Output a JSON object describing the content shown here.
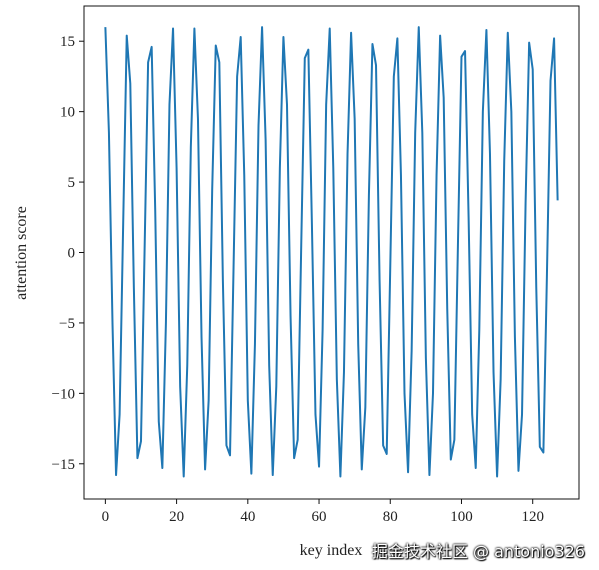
{
  "chart_data": {
    "type": "line",
    "title": "",
    "xlabel": "key index",
    "ylabel": "attention score",
    "xlim": [
      -6,
      133
    ],
    "ylim": [
      -17.5,
      17.5
    ],
    "xticks": [
      0,
      20,
      40,
      60,
      80,
      100,
      120
    ],
    "yticks": [
      -15,
      -10,
      -5,
      0,
      5,
      10,
      15
    ],
    "grid": false,
    "legend": "none",
    "series": [
      {
        "color": "#1f77b4",
        "x": [
          0,
          1,
          2,
          3,
          4,
          5,
          6,
          7,
          8,
          9,
          10,
          11,
          12,
          13,
          14,
          15,
          16,
          17,
          18,
          19,
          20,
          21,
          22,
          23,
          24,
          25,
          26,
          27,
          28,
          29,
          30,
          31,
          32,
          33,
          34,
          35,
          36,
          37,
          38,
          39,
          40,
          41,
          42,
          43,
          44,
          45,
          46,
          47,
          48,
          49,
          50,
          51,
          52,
          53,
          54,
          55,
          56,
          57,
          58,
          59,
          60,
          61,
          62,
          63,
          64,
          65,
          66,
          67,
          68,
          69,
          70,
          71,
          72,
          73,
          74,
          75,
          76,
          77,
          78,
          79,
          80,
          81,
          82,
          83,
          84,
          85,
          86,
          87,
          88,
          89,
          90,
          91,
          92,
          93,
          94,
          95,
          96,
          97,
          98,
          99,
          100,
          101,
          102,
          103,
          104,
          105,
          106,
          107,
          108,
          109,
          110,
          111,
          112,
          113,
          114,
          115,
          116,
          117,
          118,
          119,
          120,
          121,
          122,
          123,
          124,
          125,
          126,
          127
        ],
        "y": [
          16.0,
          8.5,
          -5.0,
          -15.8,
          -11.5,
          2.0,
          15.4,
          12.0,
          -2.5,
          -14.6,
          -13.4,
          0.0,
          13.5,
          14.6,
          3.0,
          -12.0,
          -15.3,
          -5.0,
          10.5,
          15.9,
          6.0,
          -9.5,
          -15.9,
          -8.0,
          7.5,
          15.9,
          9.5,
          -6.0,
          -15.4,
          -10.5,
          4.5,
          14.7,
          13.5,
          -2.0,
          -13.7,
          -14.4,
          -1.0,
          12.5,
          15.3,
          5.5,
          -10.5,
          -15.7,
          -6.5,
          9.0,
          16.0,
          8.0,
          -8.0,
          -15.8,
          -9.5,
          6.0,
          15.3,
          10.5,
          -4.5,
          -14.6,
          -13.3,
          0.5,
          13.8,
          14.4,
          2.0,
          -11.5,
          -15.2,
          -5.5,
          10.5,
          15.9,
          6.0,
          -9.0,
          -15.9,
          -8.5,
          7.0,
          15.6,
          9.5,
          -6.5,
          -15.4,
          -11.0,
          4.0,
          14.8,
          13.3,
          -2.0,
          -13.7,
          -14.3,
          -1.0,
          12.5,
          15.2,
          5.5,
          -10.0,
          -15.6,
          -7.0,
          8.5,
          16.0,
          8.5,
          -7.5,
          -15.8,
          -10.0,
          5.5,
          15.4,
          11.0,
          -4.0,
          -14.7,
          -13.3,
          0.5,
          13.9,
          14.3,
          2.5,
          -11.5,
          -15.3,
          -5.5,
          10.0,
          15.8,
          7.0,
          -8.5,
          -15.9,
          -9.0,
          6.5,
          15.6,
          10.0,
          -6.0,
          -15.5,
          -11.5,
          3.5,
          14.9,
          13.0,
          -2.5,
          -13.8,
          -14.2,
          -1.5,
          12.2,
          15.2,
          3.7
        ]
      }
    ]
  },
  "watermark": "掘金技术社区 @ antonio326"
}
